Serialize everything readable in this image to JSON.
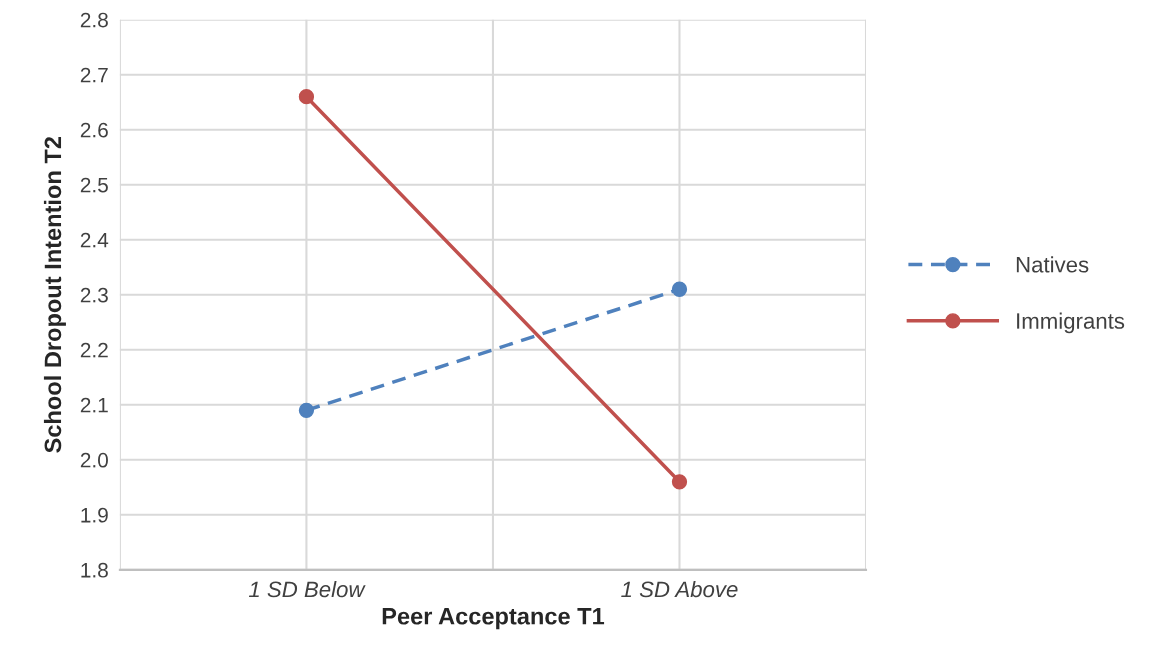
{
  "chart_data": {
    "type": "line",
    "xlabel": "Peer Acceptance T1",
    "ylabel": "School Dropout Intention T2",
    "categories": [
      "1 SD Below",
      "1 SD Above"
    ],
    "series": [
      {
        "name": "Natives",
        "color": "#4f81bd",
        "values": [
          2.09,
          2.31
        ],
        "line_style": "dashed"
      },
      {
        "name": "Immigrants",
        "color": "#c0504d",
        "values": [
          2.66,
          1.96
        ],
        "line_style": "solid"
      }
    ],
    "ylim": [
      1.8,
      2.8
    ],
    "yticks": [
      {
        "value": 1.8,
        "label": "1.8"
      },
      {
        "value": 1.9,
        "label": "1.9"
      },
      {
        "value": 2.0,
        "label": "2.0"
      },
      {
        "value": 2.1,
        "label": "2.1"
      },
      {
        "value": 2.2,
        "label": "2.2"
      },
      {
        "value": 2.3,
        "label": "2.3"
      },
      {
        "value": 2.4,
        "label": "2.4"
      },
      {
        "value": 2.5,
        "label": "2.5"
      },
      {
        "value": 2.6,
        "label": "2.6"
      },
      {
        "value": 2.7,
        "label": "2.7"
      },
      {
        "value": 2.8,
        "label": "2.8"
      }
    ],
    "grid": true,
    "legend": "right",
    "marker": "circle"
  }
}
